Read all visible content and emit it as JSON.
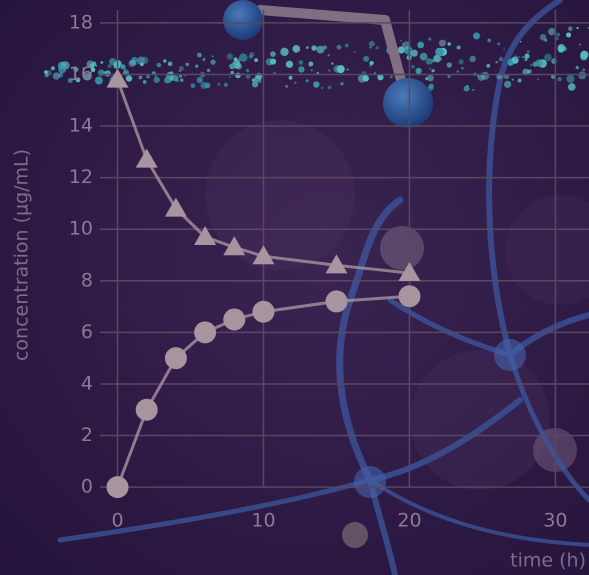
{
  "chart_data": {
    "type": "line",
    "xlabel": "time (h)",
    "ylabel": "concentration (µg/mL)",
    "x": [
      0,
      2,
      4,
      6,
      8,
      10,
      15,
      20
    ],
    "series": [
      {
        "marker": "triangle",
        "color": "#a8949f",
        "values": [
          15.8,
          12.7,
          10.8,
          9.7,
          9.3,
          8.95,
          8.6,
          8.3
        ]
      },
      {
        "marker": "circle",
        "color": "#a8949f",
        "values": [
          0,
          3.0,
          5.0,
          6.0,
          6.5,
          6.8,
          7.2,
          7.4
        ]
      }
    ],
    "xlim": [
      -1.2,
      32.3
    ],
    "ylim": [
      -0.5,
      18.5
    ],
    "xticks": [
      0,
      10,
      20,
      30
    ],
    "yticks": [
      0,
      2,
      4,
      6,
      8,
      10,
      12,
      14,
      16,
      18
    ],
    "grid": true
  }
}
